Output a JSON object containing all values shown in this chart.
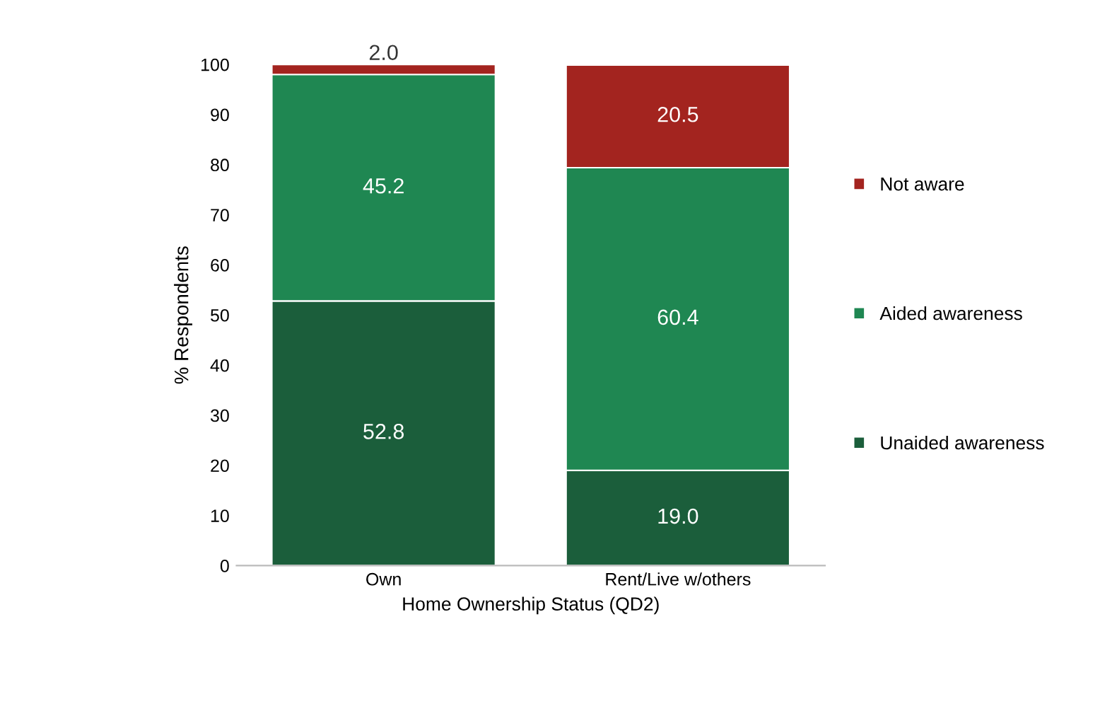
{
  "chart_data": {
    "type": "bar",
    "stacked": true,
    "xlabel": "Home Ownership Status (QD2)",
    "ylabel": "% Respondents",
    "categories": [
      "Own",
      "Rent/Live w/others"
    ],
    "series": [
      {
        "name": "Unaided awareness",
        "color": "#1b5e3b",
        "values": [
          52.8,
          19.0
        ],
        "value_labels": [
          "52.8",
          "19.0"
        ]
      },
      {
        "name": "Aided awareness",
        "color": "#1f8752",
        "values": [
          45.2,
          60.4
        ],
        "value_labels": [
          "45.2",
          "60.4"
        ]
      },
      {
        "name": "Not aware",
        "color": "#a3241f",
        "values": [
          2.0,
          20.5
        ],
        "value_labels": [
          "2.0",
          "20.5"
        ]
      }
    ],
    "ylim": [
      0,
      100
    ],
    "yticks": [
      0,
      10,
      20,
      30,
      40,
      50,
      60,
      70,
      80,
      90,
      100
    ],
    "legend": "right",
    "grid": false
  }
}
